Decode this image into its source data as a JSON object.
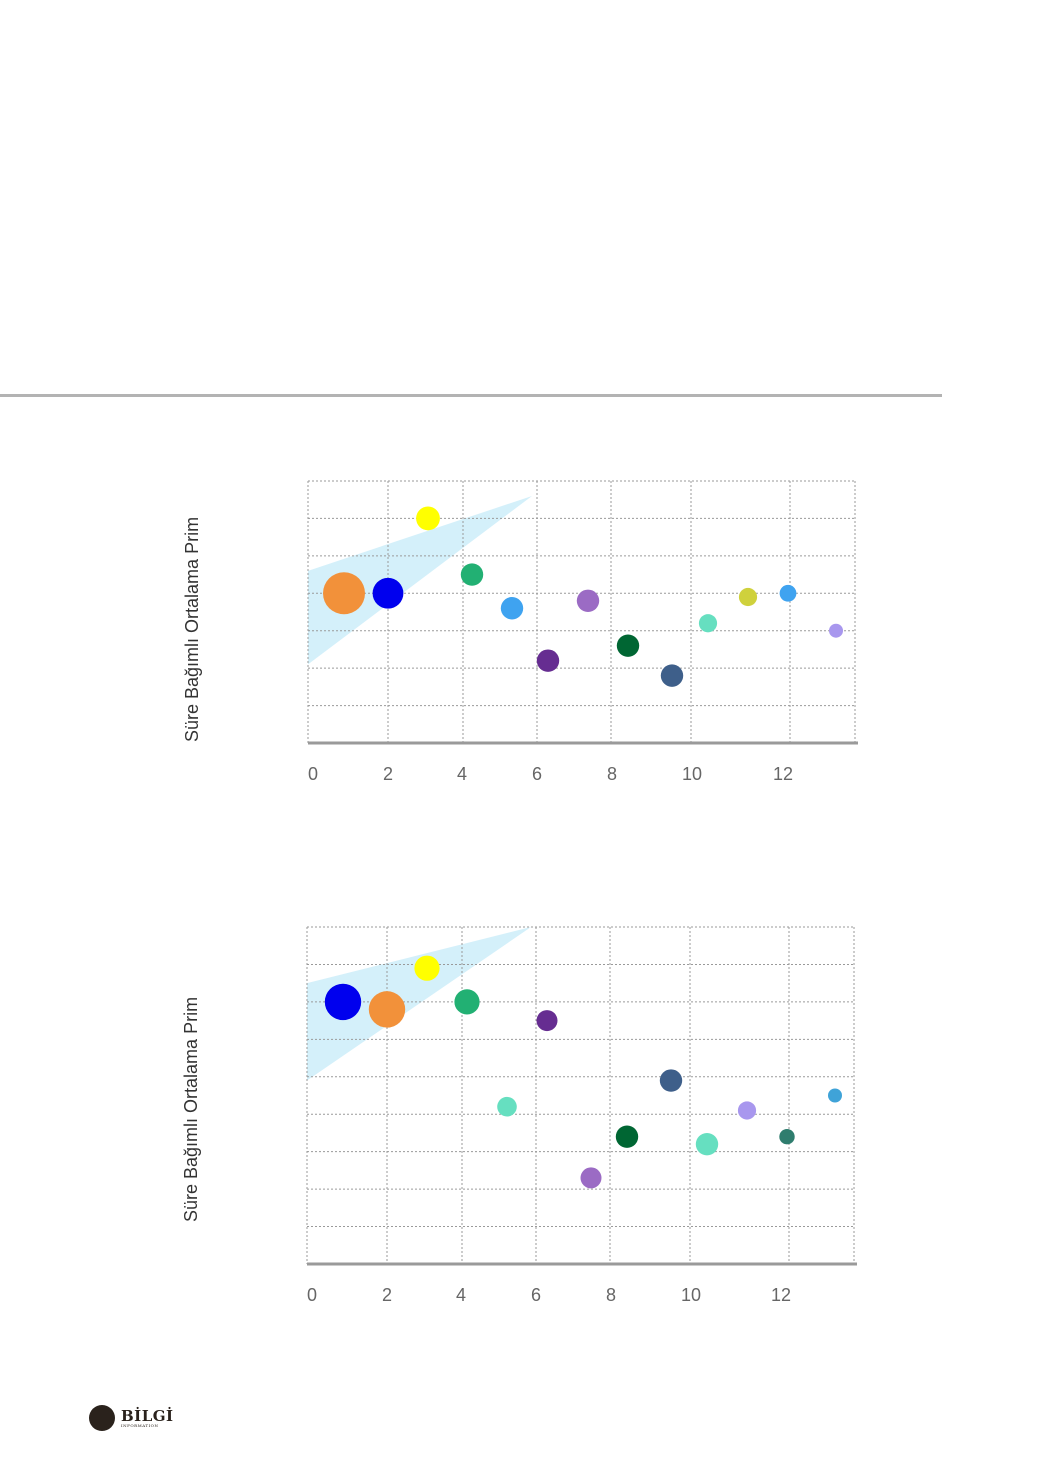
{
  "page": {
    "background": "#ffffff",
    "rule_color": "#b3b3b3"
  },
  "chart_data": [
    {
      "type": "scatter",
      "ylabel": "Süre Bağımlı Ortalama Prim",
      "xlabel": "",
      "xticks": [
        "0",
        "2",
        "4",
        "6",
        "8",
        "10",
        "12"
      ],
      "xlim": [
        0,
        13.2
      ],
      "ylim": [
        0,
        7
      ],
      "grid": true,
      "band": {
        "color": "#cfeefa",
        "x0": 0,
        "x1": 5.6,
        "y_low_at_x0": 2.1,
        "y_high_at_x0": 4.6,
        "y_at_x1": 6.6
      },
      "points": [
        {
          "x": 0.9,
          "y": 4.0,
          "size": 3,
          "color": "#f2913a"
        },
        {
          "x": 2.0,
          "y": 4.0,
          "size": 2.2,
          "color": "#0000ee"
        },
        {
          "x": 3.0,
          "y": 6.0,
          "size": 1.7,
          "color": "#ffff00"
        },
        {
          "x": 4.1,
          "y": 4.5,
          "size": 1.6,
          "color": "#22b073"
        },
        {
          "x": 5.1,
          "y": 3.6,
          "size": 1.6,
          "color": "#3fa3f0"
        },
        {
          "x": 6.0,
          "y": 2.2,
          "size": 1.6,
          "color": "#662d91"
        },
        {
          "x": 7.0,
          "y": 3.8,
          "size": 1.6,
          "color": "#9b6bc4"
        },
        {
          "x": 8.0,
          "y": 2.6,
          "size": 1.6,
          "color": "#006633"
        },
        {
          "x": 9.1,
          "y": 1.8,
          "size": 1.6,
          "color": "#3e5f8a"
        },
        {
          "x": 10.0,
          "y": 3.2,
          "size": 1.3,
          "color": "#66dfc0"
        },
        {
          "x": 11.0,
          "y": 3.9,
          "size": 1.3,
          "color": "#cfd13c"
        },
        {
          "x": 12.0,
          "y": 4.0,
          "size": 1.2,
          "color": "#3fa3f0"
        },
        {
          "x": 13.2,
          "y": 3.0,
          "size": 1.0,
          "color": "#a897ee"
        }
      ]
    },
    {
      "type": "scatter",
      "ylabel": "Süre Bağımlı Ortalama Prim",
      "xlabel": "",
      "xticks": [
        "0",
        "2",
        "4",
        "6",
        "8",
        "10",
        "12"
      ],
      "xlim": [
        0,
        13.2
      ],
      "ylim": [
        0,
        9
      ],
      "grid": true,
      "band": {
        "color": "#cfeefa",
        "x0": 0,
        "x1": 5.6,
        "y_low_at_x0": 4.9,
        "y_high_at_x0": 7.5,
        "y_at_x1": 9.0
      },
      "points": [
        {
          "x": 0.9,
          "y": 7.0,
          "size": 2.6,
          "color": "#0000ee"
        },
        {
          "x": 2.0,
          "y": 6.8,
          "size": 2.6,
          "color": "#f2913a"
        },
        {
          "x": 3.0,
          "y": 7.9,
          "size": 1.8,
          "color": "#ffff00"
        },
        {
          "x": 4.0,
          "y": 7.0,
          "size": 1.8,
          "color": "#22b073"
        },
        {
          "x": 5.0,
          "y": 4.2,
          "size": 1.4,
          "color": "#66dfc0"
        },
        {
          "x": 6.0,
          "y": 6.5,
          "size": 1.5,
          "color": "#662d91"
        },
        {
          "x": 7.1,
          "y": 2.3,
          "size": 1.5,
          "color": "#9b6bc4"
        },
        {
          "x": 8.0,
          "y": 3.4,
          "size": 1.6,
          "color": "#006633"
        },
        {
          "x": 9.1,
          "y": 4.9,
          "size": 1.6,
          "color": "#3e5f8a"
        },
        {
          "x": 10.0,
          "y": 3.2,
          "size": 1.6,
          "color": "#66dfc0"
        },
        {
          "x": 11.0,
          "y": 4.1,
          "size": 1.3,
          "color": "#a897ee"
        },
        {
          "x": 12.0,
          "y": 3.4,
          "size": 1.1,
          "color": "#2f7d6e"
        },
        {
          "x": 13.2,
          "y": 4.5,
          "size": 1.0,
          "color": "#3fa3d8"
        }
      ]
    }
  ],
  "brand": {
    "name": "BİLGİ",
    "sub": "INFORMATION",
    "mark_color": "#2a221c"
  }
}
